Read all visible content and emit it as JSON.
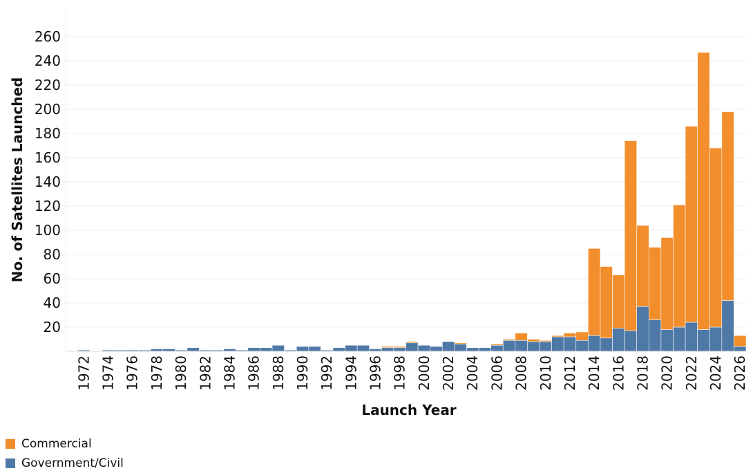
{
  "chart_data": {
    "type": "bar",
    "stacked": true,
    "xlabel": "Launch Year",
    "ylabel": "No. of Satellites Launched",
    "ylim": [
      0,
      270
    ],
    "yticks": [
      20,
      40,
      60,
      80,
      100,
      120,
      140,
      160,
      180,
      200,
      220,
      240,
      260
    ],
    "grid": true,
    "legend_position": "bottom-left",
    "categories": [
      1971,
      1972,
      1973,
      1974,
      1975,
      1976,
      1977,
      1978,
      1979,
      1980,
      1981,
      1982,
      1983,
      1984,
      1985,
      1986,
      1987,
      1988,
      1989,
      1990,
      1991,
      1992,
      1993,
      1994,
      1995,
      1996,
      1997,
      1998,
      1999,
      2000,
      2001,
      2002,
      2003,
      2004,
      2005,
      2006,
      2007,
      2008,
      2009,
      2010,
      2011,
      2012,
      2013,
      2014,
      2015,
      2016,
      2017,
      2018,
      2019,
      2020,
      2021,
      2022,
      2023,
      2024,
      2025,
      2026
    ],
    "tick_labels": [
      "1972",
      "1974",
      "1976",
      "1978",
      "1980",
      "1982",
      "1984",
      "1986",
      "1988",
      "1990",
      "1992",
      "1994",
      "1996",
      "1998",
      "2000",
      "2002",
      "2004",
      "2006",
      "2008",
      "2010",
      "2012",
      "2014",
      "2016",
      "2018",
      "2020",
      "2022",
      "2024",
      "2026"
    ],
    "series": [
      {
        "name": "Government/Civil",
        "color": "#4e79a7",
        "values": [
          0,
          1,
          0,
          1,
          1,
          1,
          1,
          2,
          2,
          1,
          3,
          1,
          1,
          2,
          1,
          3,
          3,
          5,
          1,
          4,
          4,
          1,
          3,
          5,
          5,
          2,
          3,
          3,
          7,
          5,
          4,
          8,
          6,
          3,
          3,
          5,
          9,
          9,
          8,
          8,
          12,
          12,
          9,
          13,
          11,
          19,
          17,
          37,
          26,
          18,
          20,
          24,
          18,
          20,
          42,
          4
        ]
      },
      {
        "name": "Commercial",
        "color": "#f28e2b",
        "values": [
          0,
          0,
          0,
          0,
          0,
          0,
          0,
          0,
          0,
          0,
          0,
          0,
          0,
          0,
          0,
          0,
          0,
          0,
          0,
          0,
          0,
          0,
          0,
          0,
          0,
          0,
          1,
          1,
          1,
          0,
          0,
          0,
          1,
          0,
          0,
          1,
          1,
          6,
          2,
          1,
          1,
          3,
          7,
          72,
          59,
          44,
          157,
          67,
          60,
          76,
          101,
          162,
          229,
          148,
          156,
          9
        ]
      }
    ]
  }
}
